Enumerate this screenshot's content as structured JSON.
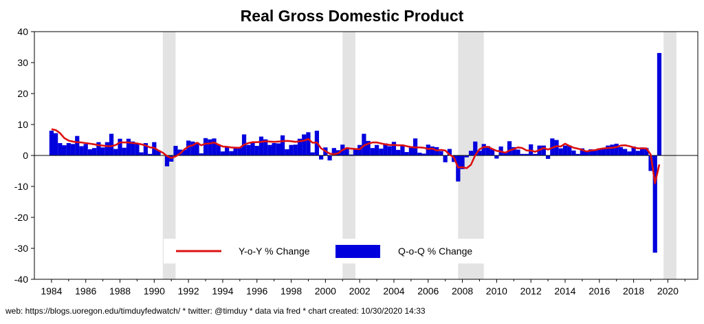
{
  "chart_data": {
    "type": "bar+line",
    "title": "Real Gross Domestic Product",
    "xlabel": "",
    "ylabel": "",
    "ylim": [
      -40,
      40
    ],
    "yticks": [
      40,
      30,
      20,
      10,
      0,
      -10,
      -20,
      -30,
      -40
    ],
    "xticks": [
      "1984",
      "1986",
      "1988",
      "1990",
      "1992",
      "1994",
      "1996",
      "1998",
      "2000",
      "2002",
      "2004",
      "2006",
      "2008",
      "2010",
      "2012",
      "2014",
      "2016",
      "2018",
      "2020"
    ],
    "x_start": 1984.0,
    "x_step": 0.25,
    "grid": false,
    "legend_position": "bottom-center",
    "colors": {
      "line": "#dd1111",
      "bars": "#0000dd",
      "recession": "#e3e3e3",
      "axis": "#000000"
    },
    "recessions": [
      [
        1990.5,
        1991.25
      ],
      [
        2001.0,
        2001.75
      ],
      [
        2007.75,
        2009.25
      ],
      [
        2019.75,
        2020.5
      ]
    ],
    "series": [
      {
        "name": "Q-o-Q % Change",
        "type": "bar",
        "values": [
          8.0,
          7.2,
          4.0,
          3.3,
          4.0,
          3.7,
          6.3,
          3.0,
          3.7,
          2.0,
          2.4,
          4.3,
          2.6,
          4.3,
          7.0,
          2.1,
          5.4,
          2.5,
          5.4,
          4.5,
          4.0,
          1.0,
          4.0,
          0.5,
          4.3,
          1.6,
          0.0,
          -3.5,
          -2.0,
          3.1,
          1.9,
          1.8,
          4.8,
          4.5,
          4.2,
          0.7,
          5.6,
          5.2,
          5.5,
          3.6,
          1.3,
          2.8,
          1.4,
          2.8,
          2.6,
          6.8,
          3.4,
          4.4,
          3.1,
          6.1,
          5.2,
          3.4,
          4.0,
          3.9,
          6.5,
          2.0,
          3.4,
          3.5,
          5.4,
          6.8,
          7.5,
          1.0,
          8.0,
          -1.3,
          2.6,
          -1.6,
          2.4,
          1.7,
          3.5,
          2.2,
          0.3,
          2.3,
          3.4,
          7.0,
          4.7,
          2.4,
          3.4,
          2.2,
          3.9,
          3.0,
          4.4,
          1.8,
          3.5,
          1.1,
          3.0,
          5.5,
          0.9,
          0.6,
          3.5,
          2.9,
          2.7,
          1.4,
          -2.2,
          2.1,
          -2.1,
          -8.4,
          -4.4,
          -0.6,
          1.5,
          4.5,
          1.5,
          3.7,
          3.0,
          2.0,
          -1.0,
          2.9,
          0.8,
          4.6,
          2.7,
          1.9,
          0.5,
          0.5,
          3.6,
          0.5,
          3.2,
          3.2,
          -1.1,
          5.5,
          5.0,
          2.3,
          3.2,
          3.2,
          1.6,
          0.5,
          2.3,
          1.3,
          2.0,
          1.9,
          2.3,
          2.2,
          3.2,
          3.5,
          3.8,
          2.7,
          2.1,
          1.3,
          2.9,
          1.5,
          2.6,
          2.4,
          -5.0,
          -31.4,
          33.1
        ]
      },
      {
        "name": "Y-o-Y % Change",
        "type": "line",
        "values": [
          8.5,
          8.2,
          7.2,
          5.6,
          4.8,
          4.5,
          4.3,
          4.2,
          4.0,
          3.8,
          3.6,
          3.3,
          3.2,
          3.0,
          3.0,
          3.4,
          4.2,
          4.2,
          4.2,
          4.0,
          3.9,
          3.6,
          3.2,
          2.6,
          2.5,
          1.6,
          0.9,
          -0.2,
          -0.8,
          -0.3,
          0.6,
          1.9,
          2.9,
          3.3,
          4.1,
          3.3,
          3.8,
          3.9,
          4.2,
          3.5,
          2.9,
          2.8,
          2.6,
          2.5,
          2.5,
          3.5,
          4.0,
          4.3,
          4.3,
          4.4,
          4.6,
          4.5,
          4.4,
          4.5,
          4.6,
          4.7,
          4.6,
          4.4,
          4.6,
          4.8,
          5.3,
          4.1,
          4.2,
          2.3,
          1.4,
          0.6,
          0.4,
          0.7,
          1.8,
          2.4,
          2.2,
          2.1,
          2.0,
          3.2,
          3.8,
          4.2,
          4.2,
          3.9,
          3.6,
          3.4,
          3.4,
          3.3,
          3.3,
          3.0,
          2.7,
          2.6,
          2.6,
          2.5,
          2.1,
          2.2,
          1.6,
          1.8,
          1.6,
          0.3,
          -0.6,
          -3.9,
          -3.8,
          -4.1,
          -3.0,
          0.1,
          2.0,
          2.7,
          2.8,
          2.1,
          1.5,
          1.3,
          0.9,
          1.6,
          2.1,
          2.6,
          2.4,
          1.6,
          1.6,
          1.2,
          1.8,
          2.4,
          1.9,
          2.5,
          3.0,
          2.9,
          3.8,
          3.1,
          2.5,
          2.2,
          1.8,
          1.3,
          1.6,
          1.7,
          2.1,
          2.3,
          2.4,
          2.5,
          2.7,
          3.2,
          3.3,
          3.0,
          2.6,
          2.3,
          2.3,
          2.3,
          0.3,
          -9.0,
          -2.9
        ]
      }
    ]
  },
  "footer": "web: https://blogs.uoregon.edu/timduyfedwatch/ * twitter: @timduy * data via fred * chart created: 10/30/2020 14:33"
}
